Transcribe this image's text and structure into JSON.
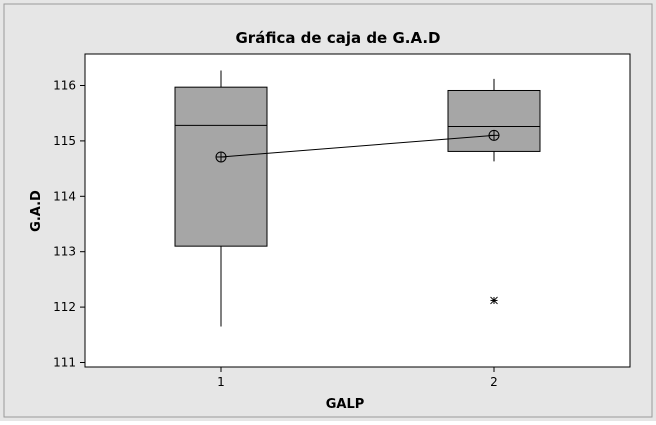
{
  "chart_data": {
    "type": "box",
    "title": "Gráfica de caja de G.A.D",
    "xlabel": "GALP",
    "ylabel": "G.A.D",
    "categories": [
      "1",
      "2"
    ],
    "ylim": [
      111,
      116.5
    ],
    "yticks": [
      111,
      112,
      113,
      114,
      115,
      116
    ],
    "boxes": [
      {
        "category": "1",
        "whisker_low": 111.65,
        "q1": 113.1,
        "median": 115.28,
        "q3": 115.97,
        "whisker_high": 116.27,
        "mean": 114.71,
        "outliers": []
      },
      {
        "category": "2",
        "whisker_low": 114.63,
        "q1": 114.81,
        "median": 115.26,
        "q3": 115.91,
        "whisker_high": 116.12,
        "mean": 115.1,
        "outliers": [
          112.12
        ]
      }
    ],
    "mean_line": true,
    "grid": false,
    "colors": {
      "box_fill": "#a6a6a6",
      "frame_bg": "#e6e6e6",
      "plot_bg": "#ffffff",
      "ink": "#000000"
    }
  }
}
